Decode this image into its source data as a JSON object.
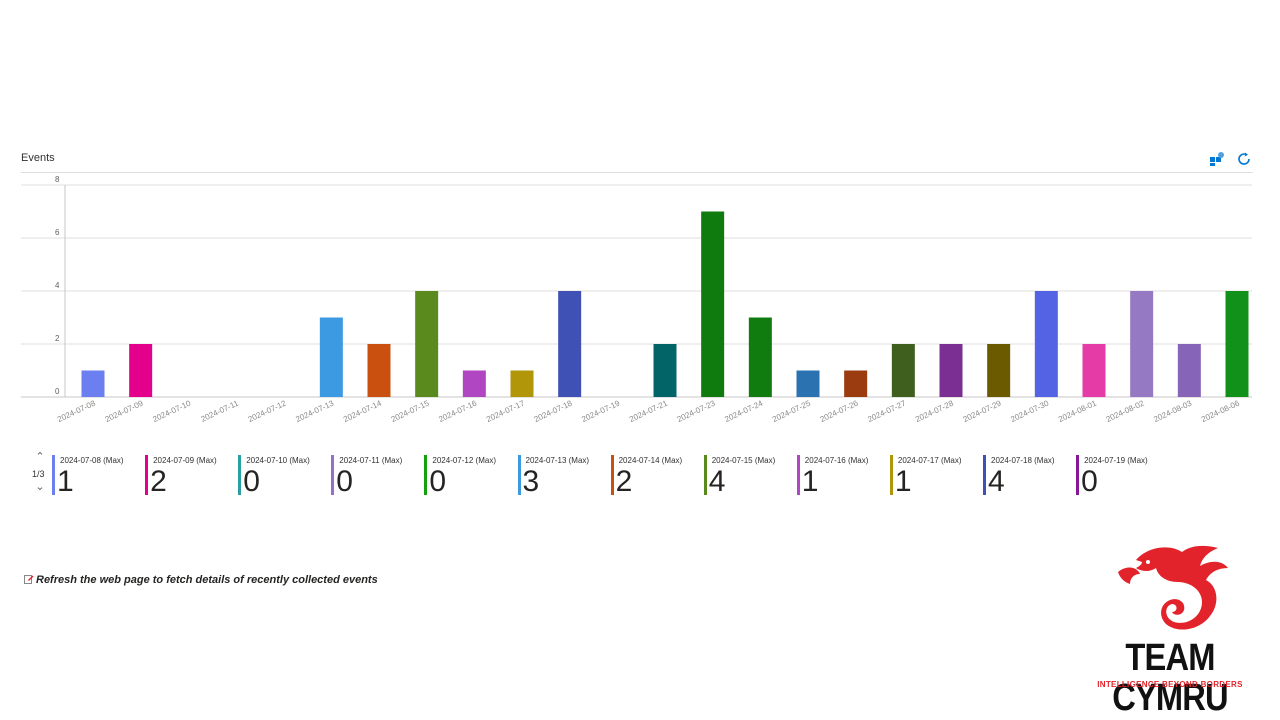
{
  "panel": {
    "title": "Events",
    "note": "Refresh the web page to fetch details of recently collected events"
  },
  "toolbar": {
    "icons": [
      "pin-to-dashboard-icon",
      "refresh-icon"
    ],
    "accent": "#0078d4"
  },
  "chart_data": {
    "type": "bar",
    "categories": [
      "2024-07-08",
      "2024-07-09",
      "2024-07-10",
      "2024-07-11",
      "2024-07-12",
      "2024-07-13",
      "2024-07-14",
      "2024-07-15",
      "2024-07-16",
      "2024-07-17",
      "2024-07-18",
      "2024-07-19",
      "2024-07-21",
      "2024-07-23",
      "2024-07-24",
      "2024-07-25",
      "2024-07-26",
      "2024-07-27",
      "2024-07-28",
      "2024-07-29",
      "2024-07-30",
      "2024-08-01",
      "2024-08-02",
      "2024-08-03",
      "2024-08-06"
    ],
    "values": [
      1,
      2,
      0,
      0,
      0,
      3,
      2,
      4,
      1,
      1,
      4,
      0,
      2,
      7,
      3,
      1,
      1,
      2,
      2,
      2,
      4,
      2,
      4,
      2,
      4
    ],
    "colors": [
      "#6b7ff0",
      "#e3008c",
      "#2aa0a4",
      "#9470c8",
      "#13a10e",
      "#3b9ae1",
      "#ca5010",
      "#5a8a1e",
      "#b146c2",
      "#b1960a",
      "#3f51b5",
      "#881798",
      "#036468",
      "#0f7b0f",
      "#107c10",
      "#2b73b0",
      "#9a3b10",
      "#3f5f1f",
      "#7c2f93",
      "#6b5a00",
      "#5462e4",
      "#e43ba6",
      "#9579c3",
      "#8664b8",
      "#11901a"
    ],
    "ylim": [
      0,
      8
    ],
    "yticks": [
      0,
      2,
      4,
      6,
      8
    ],
    "grid": true,
    "xlabel": "",
    "ylabel": ""
  },
  "legend": {
    "pager": "1/3",
    "items": [
      {
        "label": "2024-07-08 (Max)",
        "value": "1",
        "color": "#6b7ff0"
      },
      {
        "label": "2024-07-09 (Max)",
        "value": "2",
        "color": "#e3008c"
      },
      {
        "label": "2024-07-10 (Max)",
        "value": "0",
        "color": "#2aa0a4"
      },
      {
        "label": "2024-07-11 (Max)",
        "value": "0",
        "color": "#9470c8"
      },
      {
        "label": "2024-07-12 (Max)",
        "value": "0",
        "color": "#13a10e"
      },
      {
        "label": "2024-07-13 (Max)",
        "value": "3",
        "color": "#3b9ae1"
      },
      {
        "label": "2024-07-14 (Max)",
        "value": "2",
        "color": "#ca5010"
      },
      {
        "label": "2024-07-15 (Max)",
        "value": "4",
        "color": "#5a8a1e"
      },
      {
        "label": "2024-07-16 (Max)",
        "value": "1",
        "color": "#b146c2"
      },
      {
        "label": "2024-07-17 (Max)",
        "value": "1",
        "color": "#b1960a"
      },
      {
        "label": "2024-07-18 (Max)",
        "value": "4",
        "color": "#3f51b5"
      },
      {
        "label": "2024-07-19 (Max)",
        "value": "0",
        "color": "#881798"
      }
    ]
  },
  "brand": {
    "name": "TEAM CYMRU",
    "tagline": "INTELLIGENCE BEYOND BORDERS",
    "red": "#e3232c"
  }
}
